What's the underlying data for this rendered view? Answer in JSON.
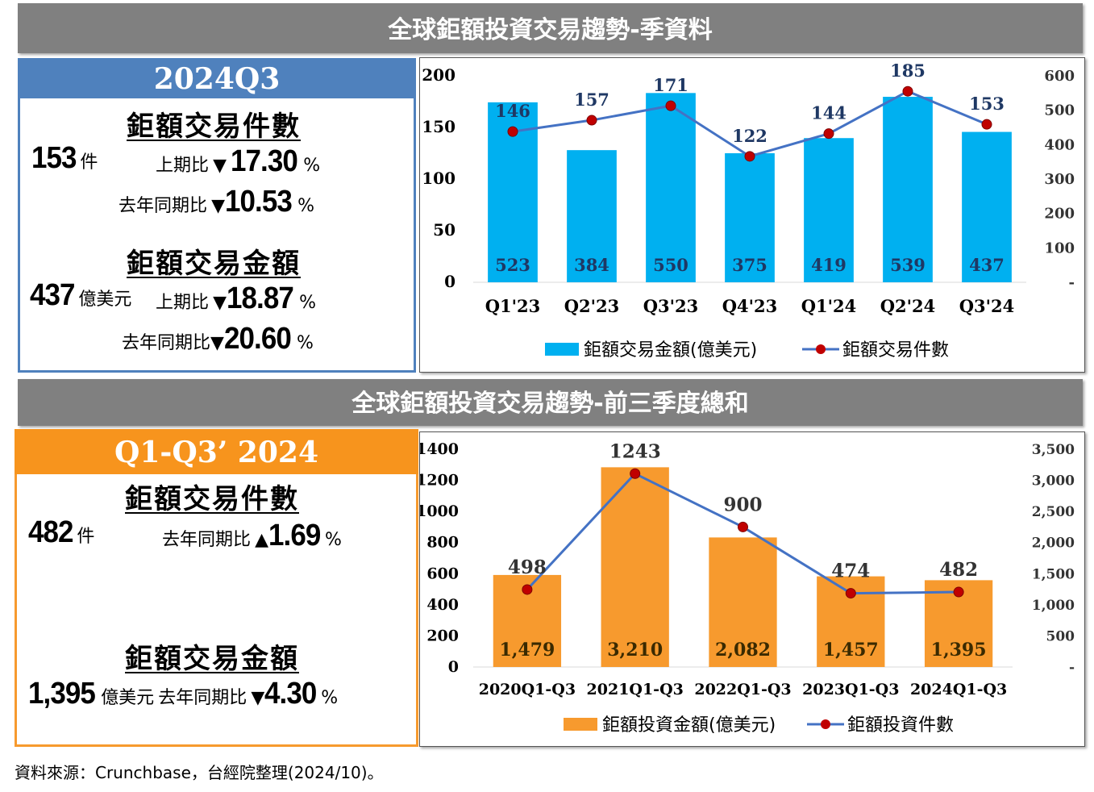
{
  "banner_top": "全球鉅額投資交易趨勢-季資料",
  "banner_bottom": "全球鉅額投資交易趨勢-前三季度總和",
  "q3": {
    "header": "2024Q3",
    "count_title": "鉅額交易件數",
    "count_value": "153",
    "count_unit": "件",
    "qoq_label": "上期比",
    "count_qoq_arrow": "▼",
    "count_qoq_value": "17.30",
    "yoy_label": "去年同期比",
    "count_yoy_arrow": "▼",
    "count_yoy_value": "10.53",
    "pct": "%",
    "amount_title": "鉅額交易金額",
    "amount_value": "437",
    "amount_unit": "億美元",
    "amount_qoq_arrow": "▼",
    "amount_qoq_value": "18.87",
    "amount_yoy_arrow": "▼",
    "amount_yoy_value": "20.60"
  },
  "ytd": {
    "header": "Q1-Q3’ 2024",
    "count_title": "鉅額交易件數",
    "count_value": "482",
    "count_unit": "件",
    "yoy_label": "去年同期比",
    "count_yoy_arrow": "▲",
    "count_yoy_value": "1.69",
    "pct": "%",
    "amount_title": "鉅額交易金額",
    "amount_value": "1,395",
    "amount_unit": "億美元",
    "amount_yoy_arrow": "▼",
    "amount_yoy_value": "4.30"
  },
  "source": "資料來源：Crunchbase，台經院整理(2024/10)。",
  "chart_data": [
    {
      "type": "bar",
      "categories": [
        "Q1'23",
        "Q2'23",
        "Q3'23",
        "Q4'23",
        "Q1'24",
        "Q2'24",
        "Q3'24"
      ],
      "series": [
        {
          "name": "鉅額交易金額(億美元)",
          "type": "bar",
          "axis": "right",
          "values": [
            523,
            384,
            550,
            375,
            419,
            539,
            437
          ],
          "color": "#00b0f0"
        },
        {
          "name": "鉅額交易件數",
          "type": "line",
          "axis": "left",
          "values": [
            146,
            157,
            171,
            122,
            144,
            185,
            153
          ],
          "color": "#4472c4",
          "marker_color": "#c00000"
        }
      ],
      "left_axis": {
        "ylim": [
          0,
          200
        ],
        "ticks": [
          "0",
          "50",
          "100",
          "150",
          "200"
        ]
      },
      "right_axis": {
        "ylim": [
          0,
          600
        ],
        "ticks": [
          "-",
          "100",
          "200",
          "300",
          "400",
          "500",
          "600"
        ]
      },
      "legend_position": "bottom",
      "grid": false
    },
    {
      "type": "bar",
      "categories": [
        "2020Q1-Q3",
        "2021Q1-Q3",
        "2022Q1-Q3",
        "2023Q1-Q3",
        "2024Q1-Q3"
      ],
      "series": [
        {
          "name": "鉅額投資金額(億美元)",
          "type": "bar",
          "axis": "right",
          "values": [
            1479,
            3210,
            2082,
            1457,
            1395
          ],
          "labels": [
            "1,479",
            "3,210",
            "2,082",
            "1,457",
            "1,395"
          ],
          "color": "#f79a2e"
        },
        {
          "name": "鉅額投資件數",
          "type": "line",
          "axis": "left",
          "values": [
            498,
            1243,
            900,
            474,
            482
          ],
          "color": "#4472c4",
          "marker_color": "#c00000"
        }
      ],
      "left_axis": {
        "ylim": [
          0,
          1400
        ],
        "ticks": [
          "0",
          "200",
          "400",
          "600",
          "800",
          "1000",
          "1200",
          "1400"
        ]
      },
      "right_axis": {
        "ylim": [
          0,
          3500
        ],
        "ticks": [
          "-",
          "500",
          "1,000",
          "1,500",
          "2,000",
          "2,500",
          "3,000",
          "3,500"
        ]
      },
      "legend_position": "bottom",
      "grid": false
    }
  ]
}
